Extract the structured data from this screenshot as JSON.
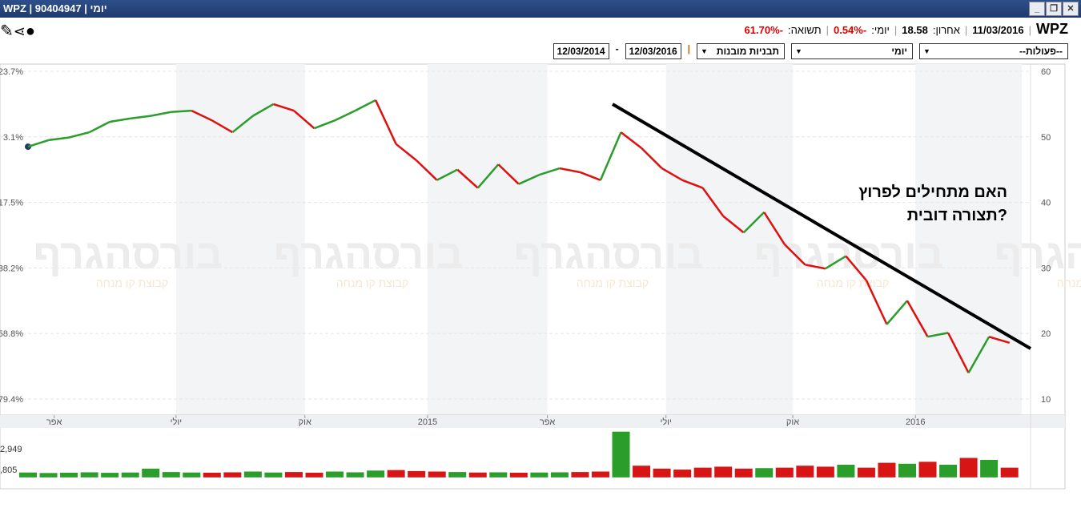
{
  "window": {
    "title": "WPZ | 90404947 | יומי"
  },
  "info": {
    "symbol": "WPZ",
    "date": "11/03/2016",
    "last_label": "אחרון:",
    "last": "18.58",
    "daily_label": "יומי:",
    "daily": "-0.54%",
    "return_label": "תשואה:",
    "return": "-61.70%"
  },
  "toolbar": {
    "actions": "--פעולות--",
    "period": "יומי",
    "patterns": "תבניות מובנות",
    "date_to": "12/03/2016",
    "dash": "-",
    "date_from": "12/03/2014"
  },
  "chart_data": {
    "type": "line",
    "annotation": [
      "האם מתחילים לפרוץ",
      "תצורה דובית?"
    ],
    "watermark": {
      "brand": "בורסהגרף",
      "sub": "קבוצת קו מנחה"
    },
    "x": [
      0,
      0.5,
      1,
      1.5,
      2,
      2.5,
      3,
      3.5,
      4,
      4.5,
      5,
      5.5,
      6,
      6.5,
      7,
      7.5,
      8,
      8.5,
      9,
      9.5,
      10,
      10.5,
      11,
      11.5,
      12,
      12.5,
      13,
      13.5,
      14,
      14.5,
      15,
      15.5,
      16,
      16.5,
      17,
      17.5,
      18,
      18.5,
      19,
      19.5,
      20,
      20.5,
      21,
      21.5,
      22,
      22.5,
      23,
      23.5,
      24
    ],
    "series": [
      {
        "name": "WPZ",
        "axis": "y",
        "values": [
          48.5,
          49.5,
          49.9,
          50.7,
          52.3,
          52.8,
          53.2,
          53.8,
          54,
          52.5,
          50.7,
          53.2,
          55,
          54,
          51.3,
          52.5,
          54,
          55.6,
          48.9,
          46.4,
          43.4,
          45,
          42.2,
          45.8,
          42.8,
          44.2,
          45.2,
          44.6,
          43.4,
          50.7,
          48.3,
          45.2,
          43.4,
          42.2,
          37.9,
          35.4,
          38.5,
          33.6,
          30.5,
          29.9,
          31.8,
          28.1,
          21.4,
          25,
          19.5,
          20.1,
          14,
          19.5,
          18.58
        ]
      },
      {
        "name": "volume",
        "axis": "y2",
        "values": [
          500,
          450,
          480,
          520,
          470,
          500,
          900,
          550,
          500,
          480,
          520,
          600,
          500,
          550,
          480,
          600,
          520,
          700,
          750,
          650,
          600,
          550,
          500,
          520,
          480,
          500,
          520,
          550,
          600,
          4700,
          1200,
          900,
          800,
          1000,
          1100,
          900,
          950,
          1000,
          1200,
          1100,
          1300,
          1000,
          1500,
          1400,
          1600,
          1300,
          2000,
          1800,
          1000
        ]
      }
    ],
    "xlim": [
      0,
      24.3
    ],
    "xticks": [
      {
        "value": 0.64,
        "label": "אפר"
      },
      {
        "value": 3.62,
        "label": "יולי"
      },
      {
        "value": 6.77,
        "label": "אוק"
      },
      {
        "value": 9.77,
        "label": "2015"
      },
      {
        "value": 12.7,
        "label": "אפר"
      },
      {
        "value": 15.6,
        "label": "יולי"
      },
      {
        "value": 18.7,
        "label": "אוק"
      },
      {
        "value": 21.7,
        "label": "2016"
      }
    ],
    "ylim": [
      10,
      60
    ],
    "yticks": [
      10,
      20,
      30,
      40,
      50,
      60
    ],
    "left_ticks": [
      {
        "value": 60,
        "label": "23.7%"
      },
      {
        "value": 50,
        "label": "3.1%"
      },
      {
        "value": 40,
        "label": "17.5%"
      },
      {
        "value": 30,
        "label": "38.2%"
      },
      {
        "value": 20,
        "label": "58.8%"
      },
      {
        "value": 10,
        "label": "79.4%"
      }
    ],
    "y2lim": [
      -1170,
      4840
    ],
    "y2ticks": [
      {
        "value": 2949,
        "label": "2,949"
      },
      {
        "value": 805,
        "label": ",805"
      }
    ]
  }
}
